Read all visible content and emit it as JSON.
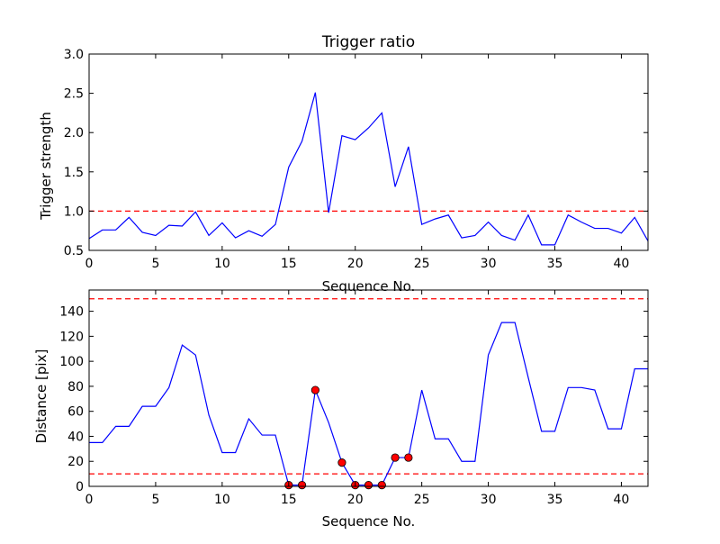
{
  "chart_data": [
    {
      "type": "line",
      "title": "Trigger ratio",
      "xlabel": "Sequence No.",
      "ylabel": "Trigger strength",
      "xlim": [
        0,
        42
      ],
      "ylim": [
        0.5,
        3.0
      ],
      "xticks": [
        0,
        5,
        10,
        15,
        20,
        25,
        30,
        35,
        40
      ],
      "xtick_labels": [
        "0",
        "5",
        "10",
        "15",
        "20",
        "25",
        "30",
        "35",
        "40"
      ],
      "yticks": [
        0.5,
        1.0,
        1.5,
        2.0,
        2.5,
        3.0
      ],
      "ytick_labels": [
        "0.5",
        "1.0",
        "1.5",
        "2.0",
        "2.5",
        "3.0"
      ],
      "grid": false,
      "series": [
        {
          "color": "#0000ff",
          "x": [
            0,
            1,
            2,
            3,
            4,
            5,
            6,
            7,
            8,
            9,
            10,
            11,
            12,
            13,
            14,
            15,
            16,
            17,
            18,
            19,
            20,
            21,
            22,
            23,
            24,
            25,
            26,
            27,
            28,
            29,
            30,
            31,
            32,
            33,
            34,
            35,
            36,
            37,
            38,
            39,
            40,
            41,
            42
          ],
          "y": [
            0.65,
            0.76,
            0.76,
            0.92,
            0.73,
            0.69,
            0.82,
            0.81,
            0.99,
            0.69,
            0.85,
            0.66,
            0.75,
            0.68,
            0.83,
            1.56,
            1.89,
            2.51,
            0.98,
            1.96,
            1.91,
            2.06,
            2.25,
            1.31,
            1.82,
            0.83,
            0.9,
            0.95,
            0.66,
            0.69,
            0.86,
            0.69,
            0.63,
            0.95,
            0.57,
            0.57,
            0.95,
            0.86,
            0.78,
            0.78,
            0.72,
            0.92,
            0.62
          ]
        }
      ],
      "hlines": [
        {
          "y": 1.0,
          "color": "#ff0000",
          "style": "dashed"
        }
      ]
    },
    {
      "type": "line",
      "title": "",
      "xlabel": "Sequence No.",
      "ylabel": "Distance [pix]",
      "xlim": [
        0,
        42
      ],
      "ylim": [
        0,
        157
      ],
      "xticks": [
        0,
        5,
        10,
        15,
        20,
        25,
        30,
        35,
        40
      ],
      "xtick_labels": [
        "0",
        "5",
        "10",
        "15",
        "20",
        "25",
        "30",
        "35",
        "40"
      ],
      "yticks": [
        0,
        20,
        40,
        60,
        80,
        100,
        120,
        140
      ],
      "ytick_labels": [
        "0",
        "20",
        "40",
        "60",
        "80",
        "100",
        "120",
        "140"
      ],
      "grid": false,
      "series": [
        {
          "color": "#0000ff",
          "x": [
            0,
            1,
            2,
            3,
            4,
            5,
            6,
            7,
            8,
            9,
            10,
            11,
            12,
            13,
            14,
            15,
            16,
            17,
            18,
            19,
            20,
            21,
            22,
            23,
            24,
            25,
            26,
            27,
            28,
            29,
            30,
            31,
            32,
            33,
            34,
            35,
            36,
            37,
            38,
            39,
            40,
            41,
            42
          ],
          "y": [
            35,
            35,
            48,
            48,
            64,
            64,
            79,
            113,
            105,
            57,
            27,
            27,
            54,
            41,
            41,
            1,
            1,
            77,
            51,
            19,
            1,
            1,
            1,
            23,
            23,
            77,
            38,
            38,
            20,
            20,
            105,
            131,
            131,
            87,
            44,
            44,
            79,
            79,
            77,
            46,
            46,
            94,
            94
          ]
        }
      ],
      "markers": {
        "color": "#ff0000",
        "x": [
          15,
          16,
          17,
          19,
          20,
          21,
          22,
          23,
          24
        ],
        "y": [
          1,
          1,
          77,
          19,
          1,
          1,
          1,
          23,
          23
        ]
      },
      "hlines": [
        {
          "y": 150,
          "color": "#ff0000",
          "style": "dashed"
        },
        {
          "y": 10,
          "color": "#ff0000",
          "style": "dashed"
        }
      ]
    }
  ]
}
